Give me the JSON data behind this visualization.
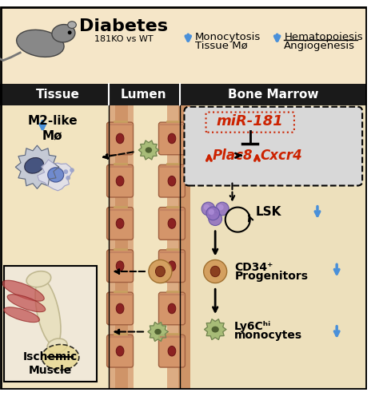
{
  "title_text": "Diabetes",
  "subtitle_text": "181KO vs WT",
  "top_bar_color": "#f5e6c8",
  "header_bar_color": "#1a1a1a",
  "section_labels": [
    "Tissue",
    "Lumen",
    "Bone Marrow"
  ],
  "bg_cream": "#f5e6c8",
  "bg_light": "#f0e8d0",
  "blue_arrow": "#4a90d9",
  "red_color": "#cc2200",
  "black": "#000000",
  "white": "#ffffff",
  "gray_box": "#d8d8d8",
  "vessel_pink": "#d4956a",
  "vessel_nucleus": "#8b2222"
}
